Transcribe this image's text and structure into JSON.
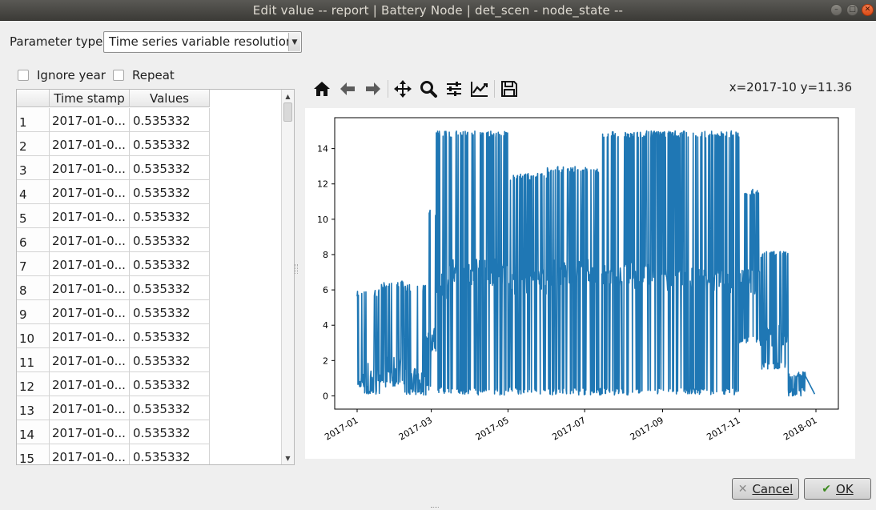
{
  "window": {
    "title": "Edit value    -- report | Battery Node | det_scen - node_state --",
    "controls": [
      "minimize",
      "maximize",
      "close"
    ]
  },
  "parameter_type": {
    "label": "Parameter type",
    "selected": "Time series variable resolution"
  },
  "options": {
    "ignore_year": {
      "label": "Ignore year",
      "checked": false
    },
    "repeat": {
      "label": "Repeat",
      "checked": false
    }
  },
  "table": {
    "headers": [
      "",
      "Time stamp",
      "Values"
    ],
    "rows": [
      {
        "index": "1",
        "timestamp": "2017-01-0...",
        "value": "0.535332"
      },
      {
        "index": "2",
        "timestamp": "2017-01-0...",
        "value": "0.535332"
      },
      {
        "index": "3",
        "timestamp": "2017-01-0...",
        "value": "0.535332"
      },
      {
        "index": "4",
        "timestamp": "2017-01-0...",
        "value": "0.535332"
      },
      {
        "index": "5",
        "timestamp": "2017-01-0...",
        "value": "0.535332"
      },
      {
        "index": "6",
        "timestamp": "2017-01-0...",
        "value": "0.535332"
      },
      {
        "index": "7",
        "timestamp": "2017-01-0...",
        "value": "0.535332"
      },
      {
        "index": "8",
        "timestamp": "2017-01-0...",
        "value": "0.535332"
      },
      {
        "index": "9",
        "timestamp": "2017-01-0...",
        "value": "0.535332"
      },
      {
        "index": "10",
        "timestamp": "2017-01-0...",
        "value": "0.535332"
      },
      {
        "index": "11",
        "timestamp": "2017-01-0...",
        "value": "0.535332"
      },
      {
        "index": "12",
        "timestamp": "2017-01-0...",
        "value": "0.535332"
      },
      {
        "index": "13",
        "timestamp": "2017-01-0...",
        "value": "0.535332"
      },
      {
        "index": "14",
        "timestamp": "2017-01-0...",
        "value": "0.535332"
      },
      {
        "index": "15",
        "timestamp": "2017-01-0...",
        "value": "0.535332"
      }
    ]
  },
  "plot_toolbar": {
    "tools": [
      "home-icon",
      "back-icon",
      "forward-icon",
      "pan-icon",
      "zoom-icon",
      "configure-subplots-icon",
      "edit-axis-icon",
      "save-icon"
    ],
    "coordinates": "x=2017-10 y=11.36"
  },
  "chart_data": {
    "type": "line",
    "title": "",
    "xlabel": "",
    "ylabel": "",
    "color": "#1f77b4",
    "x_ticks": [
      "2017-01",
      "2017-03",
      "2017-05",
      "2017-07",
      "2017-09",
      "2017-11",
      "2018-01"
    ],
    "y_ticks": [
      "0",
      "2",
      "4",
      "6",
      "8",
      "10",
      "12",
      "14"
    ],
    "xlim": [
      "2017-01-01",
      "2018-01-01"
    ],
    "ylim": [
      -0.75,
      15.75
    ],
    "grid": false,
    "series": [
      {
        "segments": [
          {
            "start": "2017-01-01",
            "end": "2017-01-07",
            "low": 0.53,
            "high": 6.0,
            "base": 0.6
          },
          {
            "start": "2017-01-07",
            "end": "2017-01-20",
            "low": 0.05,
            "high": 6.0,
            "base": 1.2
          },
          {
            "start": "2017-01-20",
            "end": "2017-02-07",
            "low": 0.5,
            "high": 6.5,
            "base": 1.5
          },
          {
            "start": "2017-02-07",
            "end": "2017-02-25",
            "low": 0.05,
            "high": 6.3,
            "base": 0.8
          },
          {
            "start": "2017-02-25",
            "end": "2017-03-05",
            "low": 0.3,
            "high": 10.6,
            "base": 3.2
          },
          {
            "start": "2017-03-05",
            "end": "2017-03-14",
            "low": 0.1,
            "high": 15.0,
            "base": 6.2
          },
          {
            "start": "2017-03-14",
            "end": "2017-05-01",
            "low": 0.05,
            "high": 15.0,
            "base": 7.0
          },
          {
            "start": "2017-05-01",
            "end": "2017-06-01",
            "low": 0.1,
            "high": 12.6,
            "base": 6.5
          },
          {
            "start": "2017-06-01",
            "end": "2017-07-15",
            "low": 0.05,
            "high": 13.0,
            "base": 7.0
          },
          {
            "start": "2017-07-15",
            "end": "2017-09-01",
            "low": 0.05,
            "high": 15.0,
            "base": 6.8
          },
          {
            "start": "2017-09-01",
            "end": "2017-11-01",
            "low": 0.05,
            "high": 15.0,
            "base": 6.5
          },
          {
            "start": "2017-11-01",
            "end": "2017-11-18",
            "low": 3.0,
            "high": 11.7,
            "base": 6.5
          },
          {
            "start": "2017-11-18",
            "end": "2017-12-10",
            "low": 1.5,
            "high": 8.2,
            "base": 3.5
          },
          {
            "start": "2017-12-10",
            "end": "2017-12-24",
            "low": 0.0,
            "high": 1.4,
            "base": 0.5
          }
        ],
        "note_points": [
          {
            "x": "2017-01-01",
            "y": 0.535332
          },
          {
            "x": "2017-12-31",
            "y": 0.1
          }
        ]
      }
    ]
  },
  "buttons": {
    "cancel": "Cancel",
    "ok": "OK"
  }
}
